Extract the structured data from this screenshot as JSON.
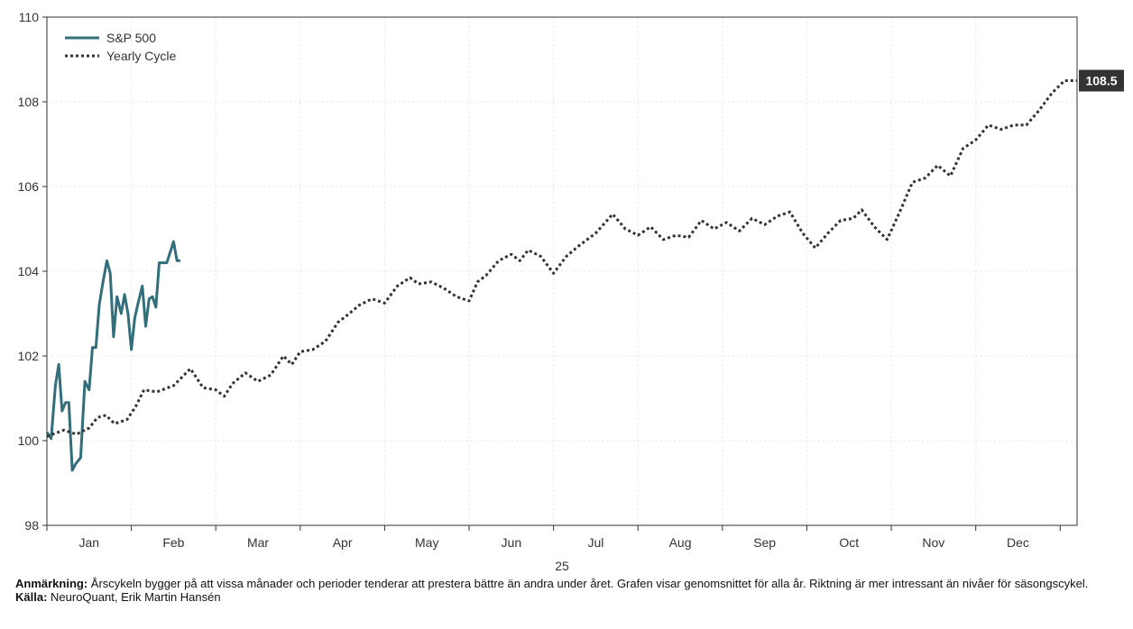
{
  "chart_data": {
    "type": "line",
    "x_axis_label": "25",
    "month_ticks": [
      "Jan",
      "Feb",
      "Mar",
      "Apr",
      "May",
      "Jun",
      "Jul",
      "Aug",
      "Sep",
      "Oct",
      "Nov",
      "Dec"
    ],
    "y_ticks": [
      98,
      100,
      102,
      104,
      106,
      108,
      110
    ],
    "ylim": [
      98,
      110
    ],
    "xlim": [
      0,
      12.2
    ],
    "grid": true,
    "legend_position": "top-left",
    "end_label": "108.5",
    "series": [
      {
        "name": "S&P 500",
        "color": "#336e7b",
        "style": "solid",
        "x": [
          0.0,
          0.05,
          0.1,
          0.14,
          0.18,
          0.22,
          0.26,
          0.3,
          0.34,
          0.4,
          0.45,
          0.5,
          0.54,
          0.58,
          0.62,
          0.66,
          0.71,
          0.75,
          0.79,
          0.83,
          0.88,
          0.92,
          0.96,
          1.0,
          1.04,
          1.08,
          1.13,
          1.17,
          1.21,
          1.25,
          1.29,
          1.33,
          1.38,
          1.42,
          1.46,
          1.5,
          1.54,
          1.58,
          1.63,
          1.67,
          1.71,
          1.75
        ],
        "y": [
          100.2,
          100.05,
          101.3,
          101.8,
          100.7,
          100.9,
          100.9,
          99.3,
          99.45,
          99.6,
          101.4,
          101.2,
          102.2,
          102.2,
          103.2,
          103.7,
          104.25,
          103.95,
          102.45,
          103.4,
          103.0,
          103.45,
          103.0,
          102.15,
          102.9,
          103.25,
          103.65,
          102.7,
          103.35,
          103.4,
          103.15,
          104.2,
          104.2,
          104.2,
          104.45,
          104.7,
          104.25,
          104.25,
          null,
          null,
          null,
          null
        ]
      },
      {
        "name": "Yearly Cycle",
        "color": "#333333",
        "style": "dotted",
        "x": [
          0.0,
          0.2,
          0.35,
          0.5,
          0.6,
          0.7,
          0.8,
          0.95,
          1.05,
          1.15,
          1.3,
          1.5,
          1.7,
          1.85,
          2.0,
          2.1,
          2.2,
          2.35,
          2.5,
          2.65,
          2.8,
          2.9,
          3.0,
          3.15,
          3.3,
          3.45,
          3.55,
          3.7,
          3.85,
          4.0,
          4.15,
          4.3,
          4.4,
          4.55,
          4.7,
          4.85,
          5.0,
          5.1,
          5.2,
          5.35,
          5.5,
          5.6,
          5.7,
          5.85,
          6.0,
          6.15,
          6.3,
          6.5,
          6.7,
          6.85,
          7.0,
          7.15,
          7.3,
          7.45,
          7.6,
          7.75,
          7.9,
          8.05,
          8.2,
          8.35,
          8.5,
          8.65,
          8.8,
          8.95,
          9.1,
          9.25,
          9.4,
          9.55,
          9.65,
          9.8,
          9.95,
          10.1,
          10.25,
          10.4,
          10.55,
          10.7,
          10.85,
          11.0,
          11.15,
          11.3,
          11.45,
          11.6,
          11.75,
          11.9,
          12.05,
          12.2
        ],
        "y": [
          100.1,
          100.25,
          100.15,
          100.3,
          100.55,
          100.6,
          100.4,
          100.5,
          100.8,
          101.2,
          101.15,
          101.3,
          101.7,
          101.25,
          101.2,
          101.05,
          101.35,
          101.6,
          101.4,
          101.55,
          102.0,
          101.8,
          102.1,
          102.15,
          102.35,
          102.8,
          102.95,
          103.2,
          103.35,
          103.25,
          103.65,
          103.85,
          103.7,
          103.75,
          103.6,
          103.4,
          103.3,
          103.75,
          103.9,
          104.25,
          104.4,
          104.25,
          104.5,
          104.35,
          103.95,
          104.35,
          104.6,
          104.9,
          105.35,
          105.0,
          104.85,
          105.05,
          104.75,
          104.85,
          104.8,
          105.2,
          105.0,
          105.15,
          104.95,
          105.25,
          105.1,
          105.3,
          105.4,
          104.9,
          104.55,
          104.9,
          105.2,
          105.25,
          105.45,
          105.05,
          104.75,
          105.4,
          106.1,
          106.2,
          106.5,
          106.25,
          106.9,
          107.1,
          107.45,
          107.35,
          107.45,
          107.45,
          107.8,
          108.2,
          108.5,
          108.5
        ]
      }
    ]
  },
  "footnote": {
    "note_label": "Anmärkning:",
    "note_text": " Årscykeln bygger på att vissa månader och perioder tenderar att prestera bättre än andra under året. Grafen visar genomsnittet för alla år. Riktning är mer intressant än nivåer för säsongscykel.",
    "source_label": "Källa:",
    "source_text": " NeuroQuant, Erik Martin Hansén"
  }
}
